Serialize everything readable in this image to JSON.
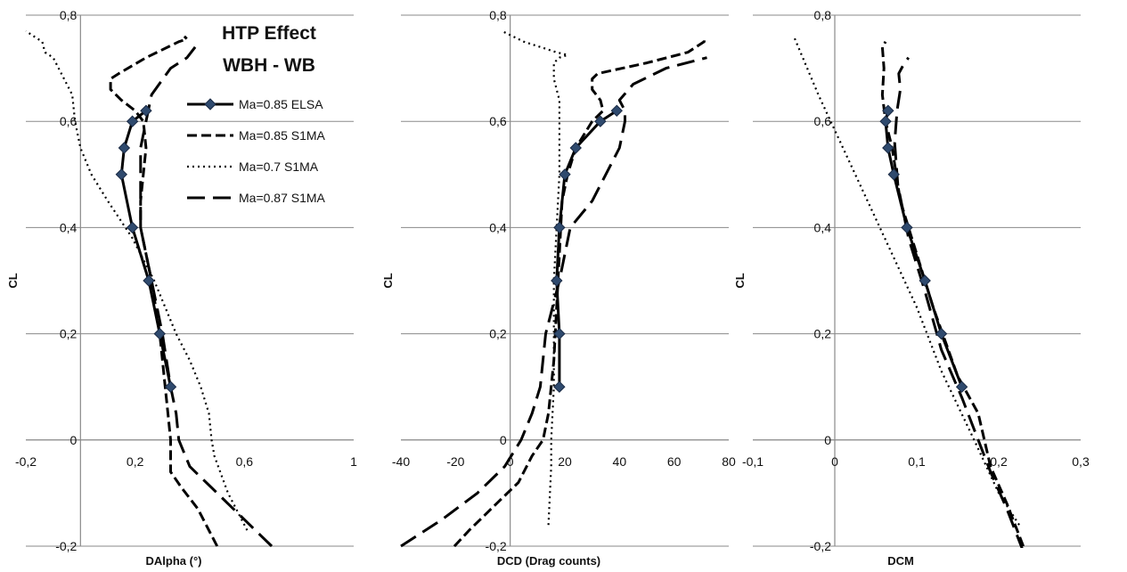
{
  "figure": {
    "title_lines": [
      "HTP Effect",
      "WBH - WB"
    ]
  },
  "series_styles": [
    {
      "name": "Ma=0.85 ELSA",
      "color": "#000000",
      "dash": "",
      "width": 3,
      "marker": "diamond"
    },
    {
      "name": "Ma=0.85 S1MA",
      "color": "#000000",
      "dash": "11,5",
      "width": 3,
      "marker": "none"
    },
    {
      "name": "Ma=0.7 S1MA",
      "color": "#000000",
      "dash": "2,4",
      "width": 2.2,
      "marker": "none"
    },
    {
      "name": "Ma=0.87 S1MA",
      "color": "#000000",
      "dash": "20,9",
      "width": 3,
      "marker": "none"
    }
  ],
  "marker_fill": "#2f4a6e",
  "chart_data": [
    {
      "type": "line",
      "xlabel": "DAlpha (°)",
      "ylabel": "CL",
      "xlim": [
        -0.2,
        1
      ],
      "ylim": [
        -0.2,
        0.8
      ],
      "xticks": [
        -0.2,
        0.2,
        0.6,
        1
      ],
      "xtick_labels": [
        "-0,2",
        "0,2",
        "0,6",
        "1"
      ],
      "yticks": [
        -0.2,
        0,
        0.2,
        0.4,
        0.6,
        0.8
      ],
      "ytick_labels": [
        "-0,2",
        "0",
        "0,2",
        "0,4",
        "0,6",
        "0,8"
      ],
      "grid": "horizontal",
      "legend": "top-right",
      "series": [
        {
          "name": "Ma=0.85 ELSA",
          "points": [
            [
              0.33,
              0.1
            ],
            [
              0.29,
              0.2
            ],
            [
              0.25,
              0.3
            ],
            [
              0.19,
              0.4
            ],
            [
              0.15,
              0.5
            ],
            [
              0.16,
              0.55
            ],
            [
              0.19,
              0.6
            ],
            [
              0.24,
              0.62
            ]
          ]
        },
        {
          "name": "Ma=0.85 S1MA",
          "points": [
            [
              0.5,
              -0.2
            ],
            [
              0.43,
              -0.13
            ],
            [
              0.37,
              -0.09
            ],
            [
              0.33,
              -0.06
            ],
            [
              0.33,
              0.0
            ],
            [
              0.32,
              0.05
            ],
            [
              0.31,
              0.1
            ],
            [
              0.29,
              0.2
            ],
            [
              0.26,
              0.3
            ],
            [
              0.22,
              0.4
            ],
            [
              0.22,
              0.45
            ],
            [
              0.24,
              0.55
            ],
            [
              0.23,
              0.6
            ],
            [
              0.2,
              0.62
            ],
            [
              0.15,
              0.64
            ],
            [
              0.11,
              0.66
            ],
            [
              0.11,
              0.68
            ],
            [
              0.14,
              0.69
            ],
            [
              0.24,
              0.72
            ],
            [
              0.36,
              0.75
            ],
            [
              0.39,
              0.755
            ],
            [
              0.38,
              0.76
            ]
          ]
        },
        {
          "name": "Ma=0.7 S1MA",
          "points": [
            [
              0.61,
              -0.17
            ],
            [
              0.54,
              -0.1
            ],
            [
              0.49,
              -0.03
            ],
            [
              0.48,
              0.0
            ],
            [
              0.47,
              0.05
            ],
            [
              0.44,
              0.1
            ],
            [
              0.4,
              0.15
            ],
            [
              0.35,
              0.2
            ],
            [
              0.27,
              0.3
            ],
            [
              0.19,
              0.38
            ],
            [
              0.1,
              0.45
            ],
            [
              0.04,
              0.5
            ],
            [
              0.0,
              0.55
            ],
            [
              -0.02,
              0.6
            ],
            [
              -0.03,
              0.65
            ],
            [
              -0.08,
              0.7
            ],
            [
              -0.1,
              0.72
            ],
            [
              -0.13,
              0.73
            ],
            [
              -0.14,
              0.75
            ],
            [
              -0.2,
              0.77
            ]
          ]
        },
        {
          "name": "Ma=0.87 S1MA",
          "points": [
            [
              0.7,
              -0.2
            ],
            [
              0.6,
              -0.15
            ],
            [
              0.5,
              -0.1
            ],
            [
              0.4,
              -0.05
            ],
            [
              0.36,
              0.0
            ],
            [
              0.35,
              0.05
            ],
            [
              0.33,
              0.1
            ],
            [
              0.3,
              0.2
            ],
            [
              0.26,
              0.3
            ],
            [
              0.22,
              0.4
            ],
            [
              0.22,
              0.5
            ],
            [
              0.22,
              0.55
            ],
            [
              0.24,
              0.6
            ],
            [
              0.26,
              0.65
            ],
            [
              0.33,
              0.7
            ],
            [
              0.39,
              0.72
            ],
            [
              0.42,
              0.74
            ]
          ]
        }
      ]
    },
    {
      "type": "line",
      "xlabel": "DCD (Drag counts)",
      "ylabel": "CL",
      "xlim": [
        -40,
        80
      ],
      "ylim": [
        -0.2,
        0.8
      ],
      "xticks": [
        -40,
        -20,
        0,
        20,
        40,
        60,
        80
      ],
      "xtick_labels": [
        "-40",
        "-20",
        "0",
        "20",
        "40",
        "60",
        "80"
      ],
      "yticks": [
        -0.2,
        0,
        0.2,
        0.4,
        0.6,
        0.8
      ],
      "ytick_labels": [
        "-0,2",
        "0",
        "0,2",
        "0,4",
        "0,6",
        "0,8"
      ],
      "grid": "horizontal",
      "legend": "none",
      "series": [
        {
          "name": "Ma=0.85 ELSA",
          "points": [
            [
              18,
              0.1
            ],
            [
              18,
              0.2
            ],
            [
              17,
              0.3
            ],
            [
              18,
              0.4
            ],
            [
              20,
              0.5
            ],
            [
              24,
              0.55
            ],
            [
              33,
              0.6
            ],
            [
              39,
              0.62
            ]
          ]
        },
        {
          "name": "Ma=0.85 S1MA",
          "points": [
            [
              -24,
              -0.22
            ],
            [
              -15,
              -0.17
            ],
            [
              -5,
              -0.12
            ],
            [
              3,
              -0.08
            ],
            [
              8,
              -0.03
            ],
            [
              12,
              0.0
            ],
            [
              14,
              0.05
            ],
            [
              16,
              0.15
            ],
            [
              17,
              0.25
            ],
            [
              18,
              0.35
            ],
            [
              19,
              0.45
            ],
            [
              21,
              0.5
            ],
            [
              24,
              0.55
            ],
            [
              30,
              0.6
            ],
            [
              34,
              0.62
            ],
            [
              33,
              0.64
            ],
            [
              30,
              0.66
            ],
            [
              30,
              0.68
            ],
            [
              32,
              0.69
            ],
            [
              50,
              0.71
            ],
            [
              65,
              0.73
            ],
            [
              71,
              0.75
            ],
            [
              71,
              0.76
            ]
          ]
        },
        {
          "name": "Ma=0.7 S1MA",
          "points": [
            [
              14,
              -0.16
            ],
            [
              15,
              -0.05
            ],
            [
              15,
              0.0
            ],
            [
              16,
              0.1
            ],
            [
              16,
              0.2
            ],
            [
              16,
              0.3
            ],
            [
              17,
              0.4
            ],
            [
              18,
              0.5
            ],
            [
              18,
              0.6
            ],
            [
              18,
              0.64
            ],
            [
              16,
              0.68
            ],
            [
              16,
              0.71
            ],
            [
              18,
              0.72
            ],
            [
              21,
              0.725
            ],
            [
              17,
              0.73
            ],
            [
              5,
              0.75
            ],
            [
              -3,
              0.77
            ]
          ]
        },
        {
          "name": "Ma=0.87 S1MA",
          "points": [
            [
              -40,
              -0.2
            ],
            [
              -25,
              -0.15
            ],
            [
              -12,
              -0.1
            ],
            [
              -2,
              -0.05
            ],
            [
              4,
              0.0
            ],
            [
              8,
              0.05
            ],
            [
              11,
              0.1
            ],
            [
              13,
              0.2
            ],
            [
              18,
              0.3
            ],
            [
              22,
              0.4
            ],
            [
              30,
              0.45
            ],
            [
              35,
              0.5
            ],
            [
              40,
              0.55
            ],
            [
              42,
              0.6
            ],
            [
              42,
              0.62
            ],
            [
              40,
              0.64
            ],
            [
              45,
              0.67
            ],
            [
              57,
              0.7
            ],
            [
              72,
              0.72
            ]
          ]
        }
      ]
    },
    {
      "type": "line",
      "xlabel": "DCM",
      "ylabel": "CL",
      "xlim": [
        -0.1,
        0.3
      ],
      "ylim": [
        -0.2,
        0.8
      ],
      "xticks": [
        -0.1,
        0,
        0.1,
        0.2,
        0.3
      ],
      "xtick_labels": [
        "-0,1",
        "0",
        "0,1",
        "0,2",
        "0,3"
      ],
      "yticks": [
        -0.2,
        0,
        0.2,
        0.4,
        0.6,
        0.8
      ],
      "ytick_labels": [
        "-0,2",
        "0",
        "0,2",
        "0,4",
        "0,6",
        "0,8"
      ],
      "grid": "horizontal",
      "legend": "none",
      "series": [
        {
          "name": "Ma=0.85 ELSA",
          "points": [
            [
              0.155,
              0.1
            ],
            [
              0.13,
              0.2
            ],
            [
              0.11,
              0.3
            ],
            [
              0.088,
              0.4
            ],
            [
              0.072,
              0.5
            ],
            [
              0.065,
              0.55
            ],
            [
              0.062,
              0.6
            ],
            [
              0.065,
              0.62
            ]
          ]
        },
        {
          "name": "Ma=0.85 S1MA",
          "points": [
            [
              0.23,
              -0.2
            ],
            [
              0.21,
              -0.12
            ],
            [
              0.19,
              -0.05
            ],
            [
              0.175,
              0.05
            ],
            [
              0.15,
              0.12
            ],
            [
              0.12,
              0.25
            ],
            [
              0.1,
              0.35
            ],
            [
              0.08,
              0.45
            ],
            [
              0.07,
              0.55
            ],
            [
              0.062,
              0.6
            ],
            [
              0.058,
              0.65
            ],
            [
              0.06,
              0.7
            ],
            [
              0.058,
              0.74
            ],
            [
              0.062,
              0.75
            ]
          ]
        },
        {
          "name": "Ma=0.7 S1MA",
          "points": [
            [
              0.225,
              -0.16
            ],
            [
              0.2,
              -0.1
            ],
            [
              0.17,
              0.0
            ],
            [
              0.13,
              0.13
            ],
            [
              0.1,
              0.25
            ],
            [
              0.07,
              0.35
            ],
            [
              0.04,
              0.45
            ],
            [
              0.01,
              0.55
            ],
            [
              -0.02,
              0.65
            ],
            [
              -0.05,
              0.76
            ]
          ]
        },
        {
          "name": "Ma=0.87 S1MA",
          "points": [
            [
              0.23,
              -0.21
            ],
            [
              0.21,
              -0.13
            ],
            [
              0.19,
              -0.06
            ],
            [
              0.17,
              0.02
            ],
            [
              0.155,
              0.08
            ],
            [
              0.13,
              0.17
            ],
            [
              0.11,
              0.28
            ],
            [
              0.09,
              0.38
            ],
            [
              0.077,
              0.48
            ],
            [
              0.073,
              0.56
            ],
            [
              0.076,
              0.62
            ],
            [
              0.08,
              0.66
            ],
            [
              0.078,
              0.69
            ],
            [
              0.085,
              0.71
            ],
            [
              0.09,
              0.72
            ]
          ]
        }
      ]
    }
  ]
}
